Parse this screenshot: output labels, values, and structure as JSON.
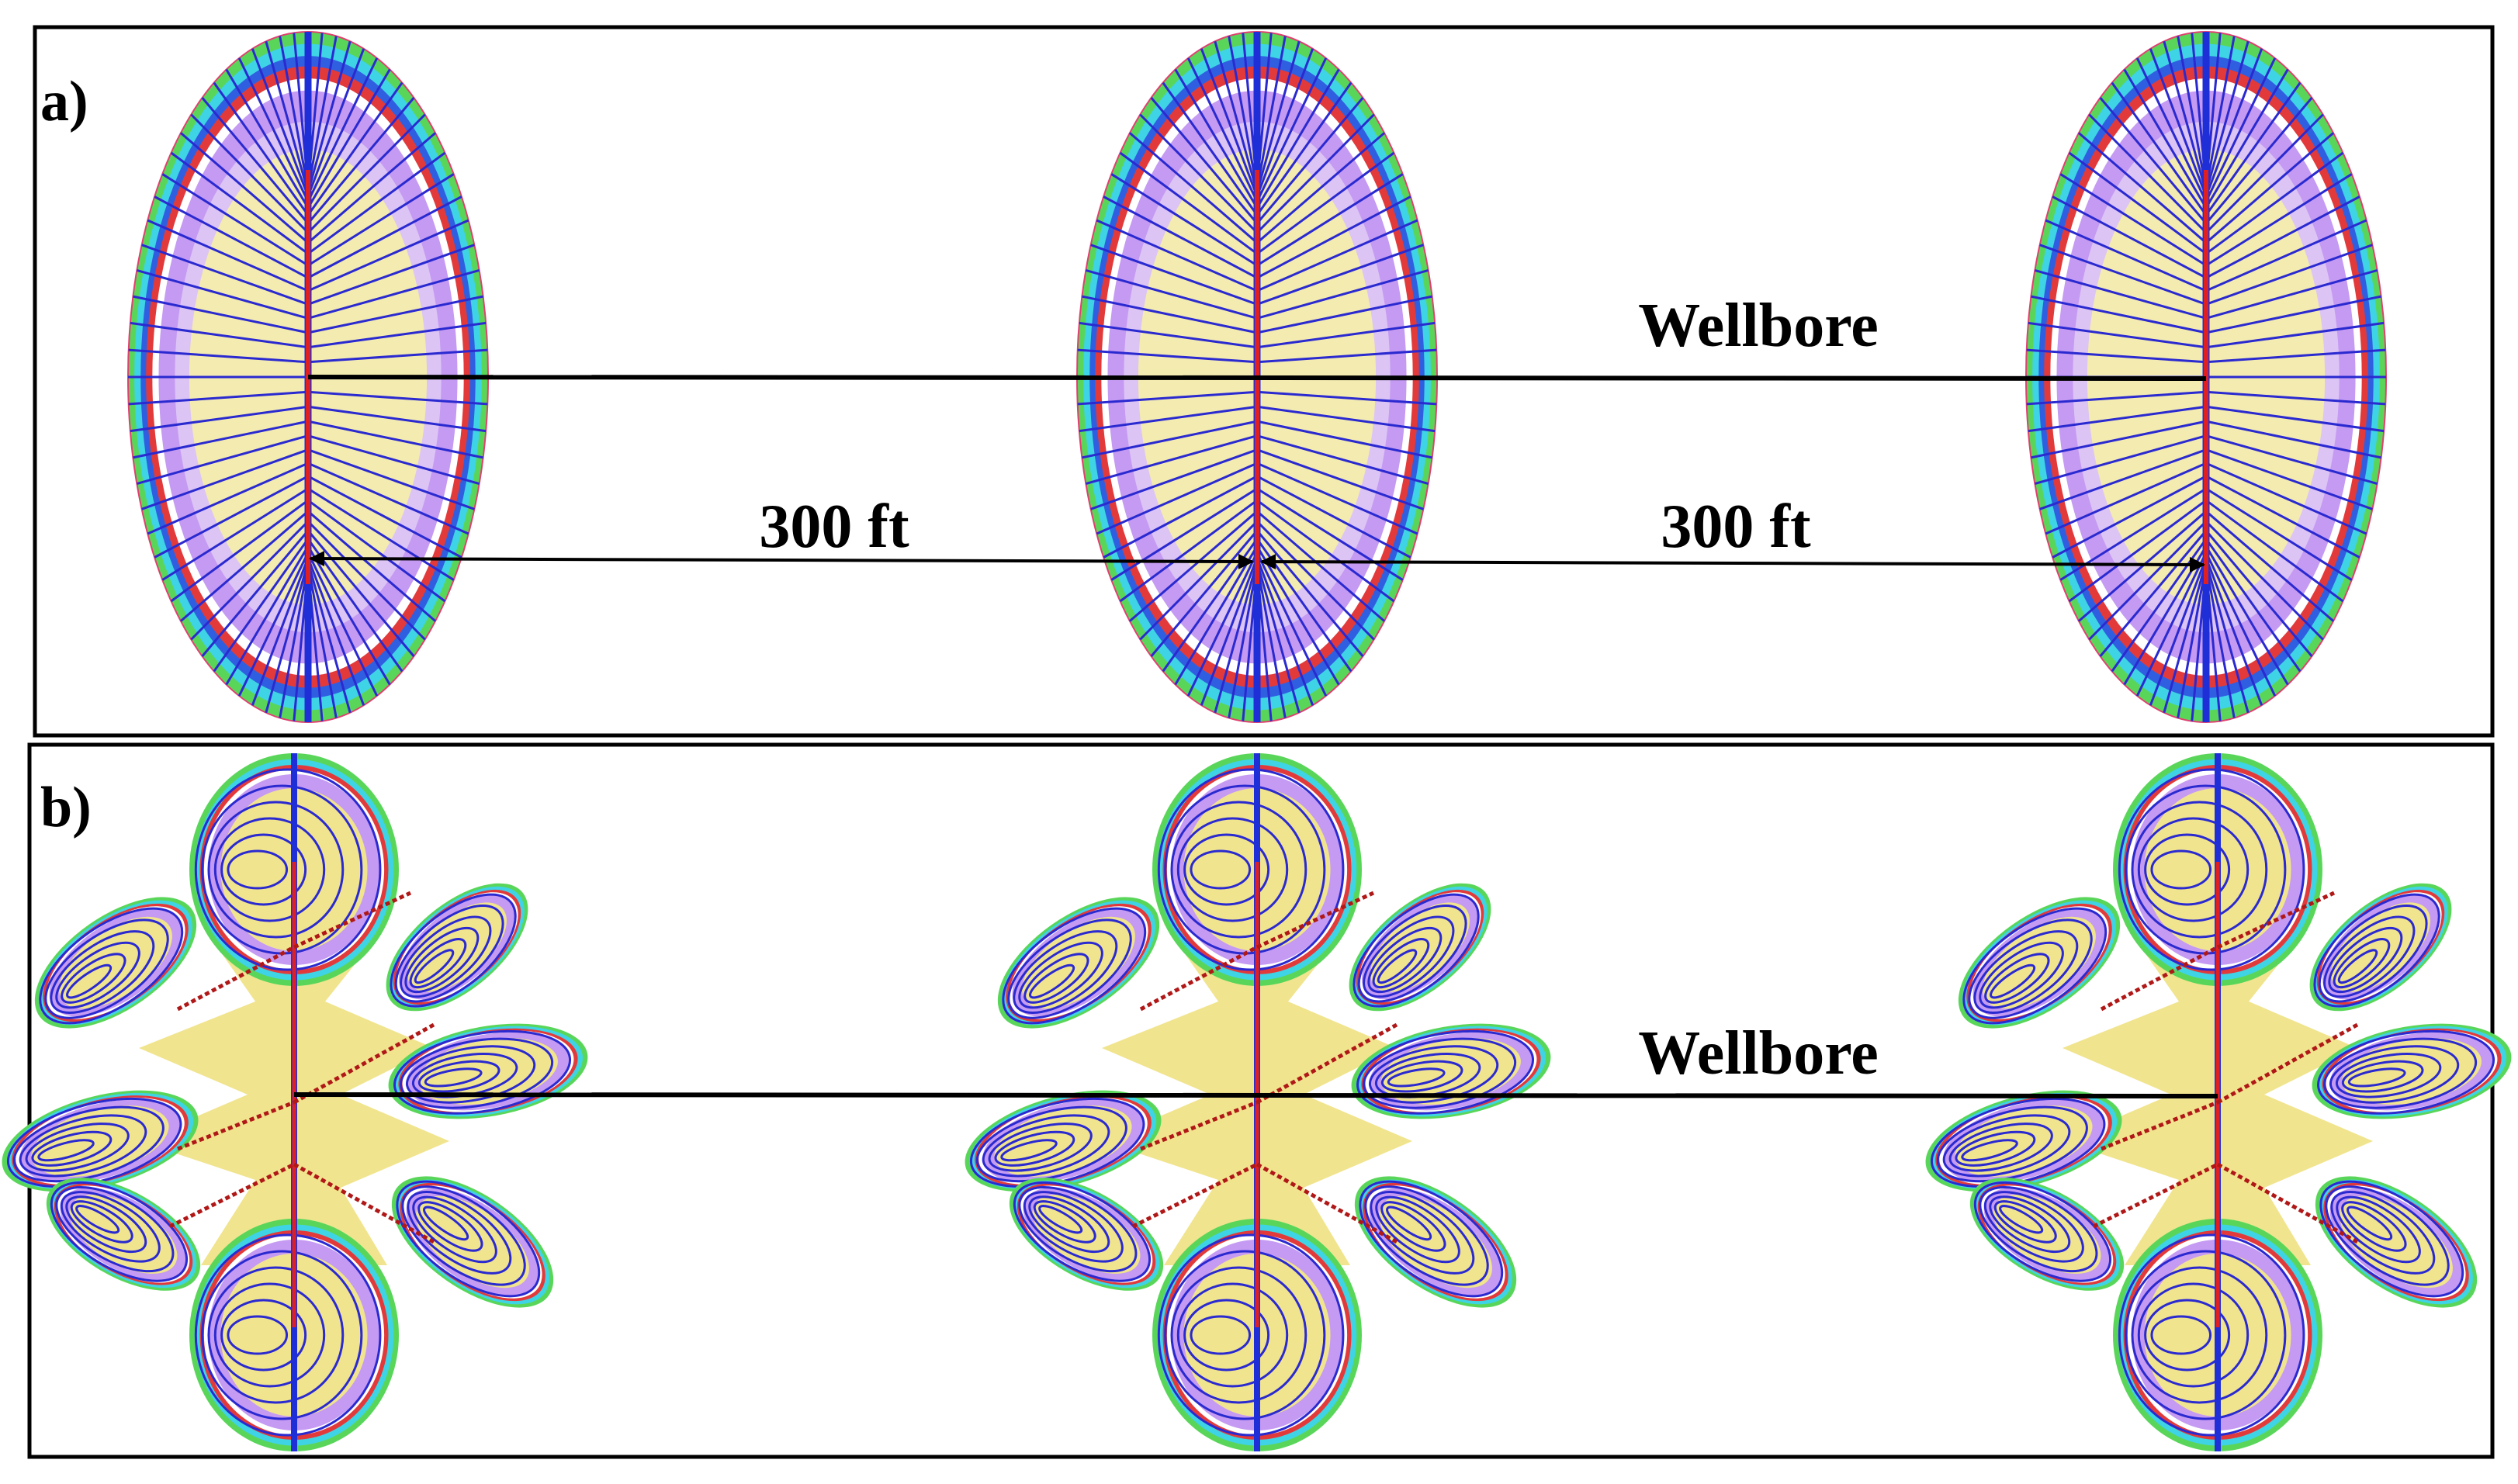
{
  "panels": [
    {
      "label": "a)",
      "wellbore": "Wellbore",
      "spacings": [
        "300 ft",
        "300 ft"
      ]
    },
    {
      "label": "b)",
      "wellbore": "Wellbore"
    }
  ]
}
